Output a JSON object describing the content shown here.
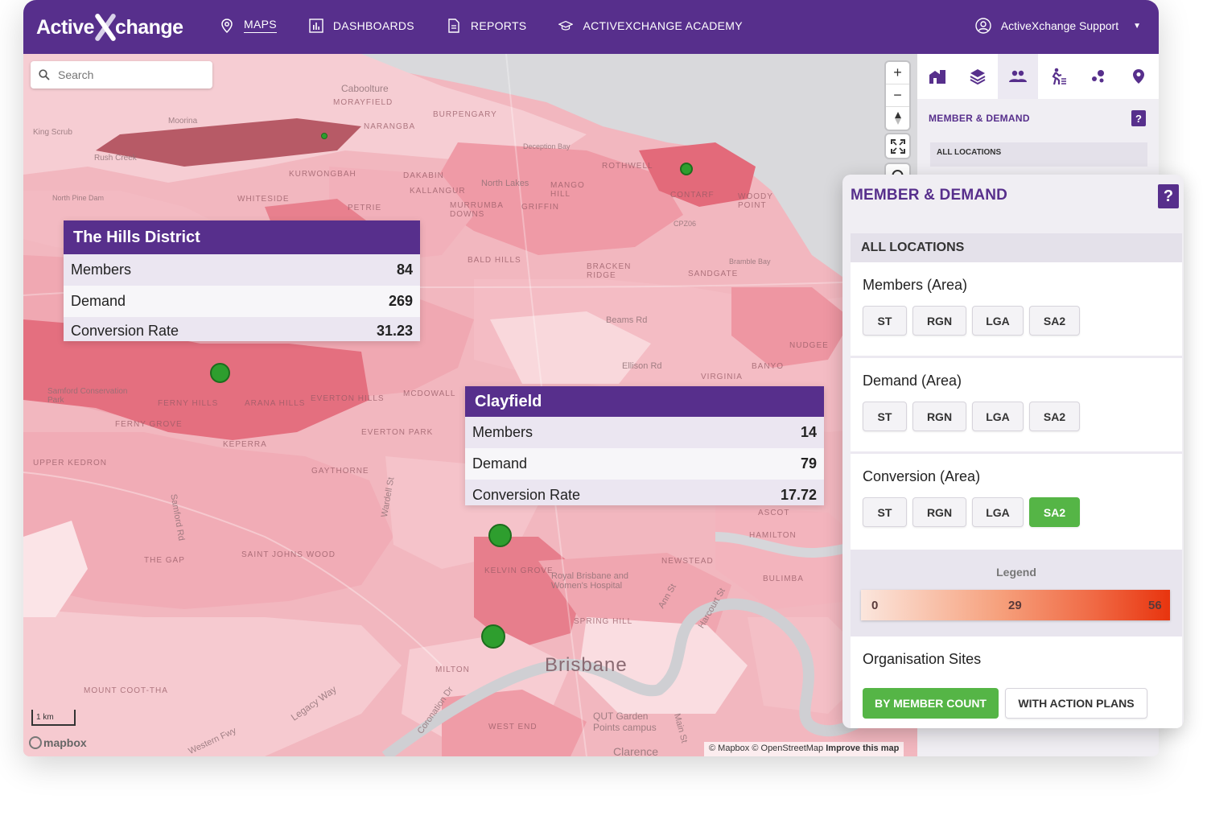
{
  "app": {
    "logo_text_a": "Active",
    "logo_text_b": "change",
    "nav": [
      {
        "label": "MAPS",
        "icon": "map-pin-icon",
        "active": true
      },
      {
        "label": "DASHBOARDS",
        "icon": "bar-chart-icon",
        "active": false
      },
      {
        "label": "REPORTS",
        "icon": "document-icon",
        "active": false
      },
      {
        "label": "ACTIVEXCHANGE ACADEMY",
        "icon": "graduation-cap-icon",
        "active": false
      }
    ],
    "user": "ActiveXchange Support"
  },
  "map": {
    "search_placeholder": "Search",
    "controls": [
      "+",
      "−"
    ],
    "scale_label": "1 km",
    "mapbox_label": "mapbox",
    "attribution": "© Mapbox © OpenStreetMap",
    "attribution_link": "Improve this map",
    "labels": {
      "brisbane": "Brisbane",
      "the_gap": "THE GAP",
      "milton": "MILTON",
      "spring_hill": "SPRING HILL",
      "kelvin_grove": "KELVIN GROVE",
      "newstead": "NEWSTEAD",
      "bulimba": "BULIMBA",
      "hamilton": "HAMILTON",
      "ascot": "ASCOT",
      "nudgee": "NUDGEE",
      "banyo": "BANYO",
      "virginia": "VIRGINIA",
      "gaythorne": "GAYTHORNE",
      "keperra": "KEPERRA",
      "everton_park": "EVERTON PARK",
      "mcdowall": "MCDOWALL",
      "upper_kedron": "UPPER KEDRON",
      "ferny_grove": "FERNY GROVE",
      "ferny_hills": "FERNY HILLS",
      "arana_hills": "ARANA HILLS",
      "everton_hills": "EVERTON HILLS",
      "saint_johns_wood": "SAINT JOHNS WOOD",
      "mount_coot_tha": "MOUNT COOT-THA",
      "west_end": "WEST END",
      "clarence": "Clarence",
      "qut": "QUT Garden Points campus",
      "royal_brisbane": "Royal Brisbane and Women's Hospital",
      "samford": "Samford Conservation Park",
      "bramble_bay": "Bramble Bay",
      "cpz06": "CPZ06",
      "bracken_ridge": "BRACKEN RIDGE",
      "sandgate": "SANDGATE",
      "bald_hills": "BALD HILLS",
      "petrie": "PETRIE",
      "griffin": "GRIFFIN",
      "mango_hill": "MANGO HILL",
      "kallangur": "KALLANGUR",
      "north_lakes": "North Lakes",
      "murrumba_downs": "MURRUMBA DOWNS",
      "rothwell": "ROTHWELL",
      "contarf": "CONTARF",
      "woody_point": "WOODY POINT",
      "kurwongbah": "KURWONGBAH",
      "dakabin": "DAKABIN",
      "burpengary": "BURPENGARY",
      "narangba": "NARANGBA",
      "caboolture": "Caboolture",
      "morayfield": "MORAYFIELD",
      "deception_bay": "Deception Bay",
      "whiteside": "WHITESIDE",
      "north_pine_dam": "North Pine Dam",
      "rush_creek": "Rush Creek",
      "king_scrub": "King Scrub",
      "moorina": "Moorina",
      "beams_rd": "Beams Rd",
      "ellison_rd": "Ellison Rd",
      "wardell_st": "Wardell St",
      "legacy_way": "Legacy Way",
      "coronation_dr": "Coronation Dr",
      "western_fwy": "Western Fwy",
      "main_st": "Main St",
      "ann_st": "Ann St",
      "harcourt_st": "Harcourt St",
      "samford_rd": "Samford Rd"
    }
  },
  "cards": [
    {
      "title": "The Hills District",
      "rows": [
        {
          "label": "Members",
          "value": "84"
        },
        {
          "label": "Demand",
          "value": "269"
        },
        {
          "label": "Conversion Rate",
          "value": "31.23"
        }
      ]
    },
    {
      "title": "Clayfield",
      "rows": [
        {
          "label": "Members",
          "value": "14"
        },
        {
          "label": "Demand",
          "value": "79"
        },
        {
          "label": "Conversion Rate",
          "value": "17.72"
        }
      ]
    }
  ],
  "sidebar": {
    "title": "MEMBER & DEMAND",
    "help": "?",
    "section": "ALL LOCATIONS",
    "tabs": [
      "buildings-icon",
      "layers-icon",
      "people-icon",
      "activity-icon",
      "cluster-icon",
      "location-pin-icon"
    ]
  },
  "popup": {
    "title": "MEMBER & DEMAND",
    "help": "?",
    "section": "ALL LOCATIONS",
    "blocks": [
      {
        "title": "Members (Area)",
        "buttons": [
          "ST",
          "RGN",
          "LGA",
          "SA2"
        ],
        "selected": ""
      },
      {
        "title": "Demand (Area)",
        "buttons": [
          "ST",
          "RGN",
          "LGA",
          "SA2"
        ],
        "selected": ""
      },
      {
        "title": "Conversion (Area)",
        "buttons": [
          "ST",
          "RGN",
          "LGA",
          "SA2"
        ],
        "selected": "SA2"
      }
    ],
    "legend": {
      "title": "Legend",
      "min": "0",
      "mid": "29",
      "max": "56",
      "colors": [
        "#fbe6dd",
        "#f6a07c",
        "#e8340e"
      ]
    },
    "org": {
      "title": "Organisation Sites",
      "primary": "BY MEMBER COUNT",
      "secondary": "WITH ACTION PLANS"
    }
  },
  "colors": {
    "brand": "#572f8c",
    "accent_green": "#55b546",
    "site_dot": "#2e9e2e"
  }
}
